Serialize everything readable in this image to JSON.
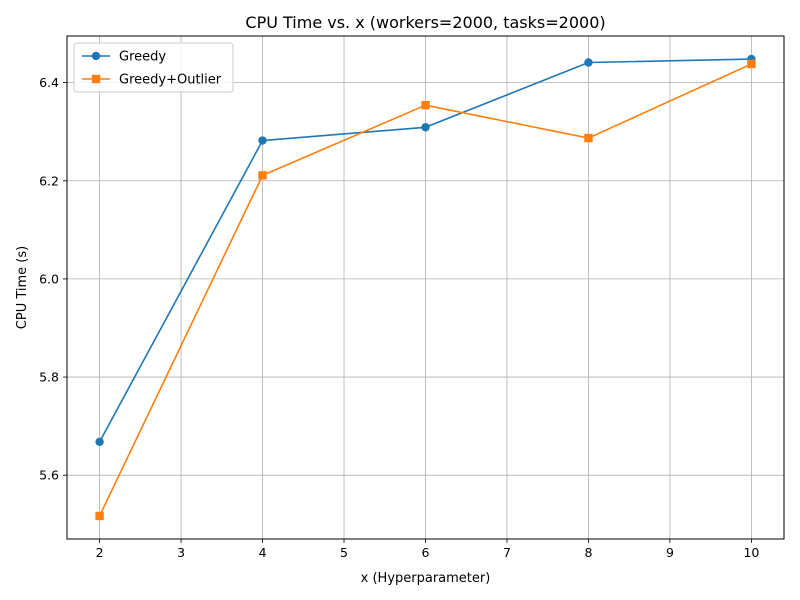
{
  "chart_data": {
    "type": "line",
    "title": "CPU Time vs. x (workers=2000, tasks=2000)",
    "xlabel": "x (Hyperparameter)",
    "ylabel": "CPU Time (s)",
    "xlim": [
      1.6,
      10.4
    ],
    "ylim": [
      5.47,
      6.495
    ],
    "xticks": [
      2,
      3,
      4,
      5,
      6,
      7,
      8,
      9,
      10
    ],
    "yticks": [
      5.6,
      5.8,
      6.0,
      6.2,
      6.4
    ],
    "ytick_labels": [
      "5.6",
      "5.8",
      "6.0",
      "6.2",
      "6.4"
    ],
    "grid": true,
    "legend_position": "top-left",
    "x": [
      2,
      4,
      6,
      8,
      10
    ],
    "series": [
      {
        "name": "Greedy",
        "color": "#1f77b4",
        "marker": "circle",
        "values": [
          5.668,
          6.282,
          6.309,
          6.441,
          6.448
        ]
      },
      {
        "name": "Greedy+Outlier",
        "color": "#ff7f0e",
        "marker": "square",
        "values": [
          5.517,
          6.211,
          6.354,
          6.287,
          6.438
        ]
      }
    ]
  }
}
